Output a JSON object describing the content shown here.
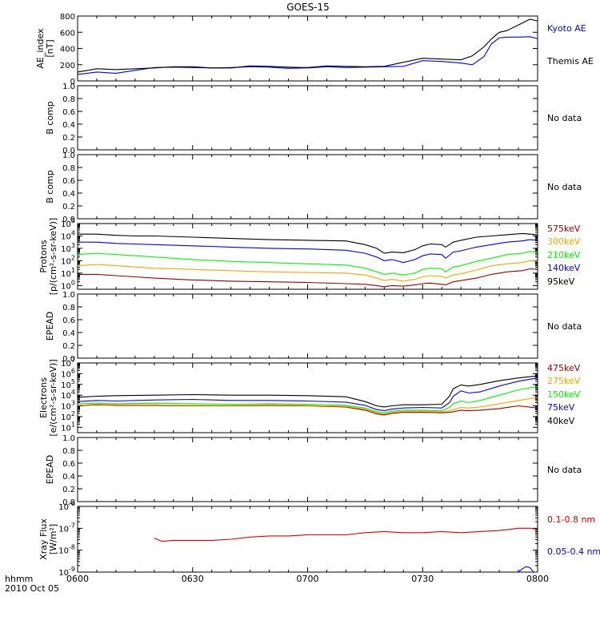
{
  "title": "GOES-15",
  "time_axis": {
    "start": "0600",
    "end": "0800",
    "tick_labels": [
      "0600",
      "0630",
      "0700",
      "0730",
      "0800"
    ],
    "label_line1": "hhmm",
    "label_line2": "2010 Oct 05"
  },
  "colors": {
    "black": "#000000",
    "blue": "#0000ff",
    "red": "#c00000",
    "orange": "#ffa500",
    "green": "#00ff00",
    "darkred": "#990000"
  },
  "chart_data": [
    {
      "type": "line",
      "panel": "ae",
      "ylabel": "AE_index\n[nT]",
      "ylim": [
        0,
        800
      ],
      "yticks": [
        "0",
        "200",
        "400",
        "600",
        "800"
      ],
      "x_minutes_from_0600": [
        0,
        5,
        10,
        15,
        20,
        25,
        30,
        35,
        40,
        45,
        50,
        55,
        60,
        65,
        70,
        75,
        80,
        85,
        90,
        95,
        100,
        103,
        106,
        108,
        110,
        112,
        115,
        118,
        120
      ],
      "series": [
        {
          "name": "Kyoto AE",
          "color": "#0000ff",
          "values": [
            80,
            110,
            95,
            130,
            165,
            170,
            165,
            160,
            165,
            175,
            170,
            155,
            160,
            175,
            165,
            170,
            175,
            180,
            250,
            240,
            220,
            200,
            300,
            460,
            530,
            540,
            540,
            545,
            520
          ]
        },
        {
          "name": "Themis AE",
          "color": "#000000",
          "values": [
            110,
            150,
            140,
            150,
            160,
            175,
            175,
            160,
            160,
            185,
            180,
            170,
            165,
            185,
            180,
            175,
            180,
            230,
            280,
            270,
            260,
            310,
            420,
            520,
            600,
            620,
            690,
            760,
            740
          ]
        }
      ]
    },
    {
      "type": "empty",
      "panel": "b1",
      "ylabel": "B comp",
      "ylim": [
        0,
        1
      ],
      "yticks": [
        "0.0",
        "0.2",
        "0.4",
        "0.6",
        "0.8",
        "1.0"
      ],
      "note": "No data"
    },
    {
      "type": "empty",
      "panel": "b2",
      "ylabel": "B comp",
      "ylim": [
        0,
        1
      ],
      "yticks": [
        "0.0",
        "0.2",
        "0.4",
        "0.6",
        "0.8",
        "1.0"
      ],
      "note": "No data"
    },
    {
      "type": "line",
      "panel": "protons",
      "scale": "log",
      "ylabel": "Protons\n[p/(cm²-s-sr-keV)]",
      "ylim_exp": [
        -0.3,
        5
      ],
      "ytick_exps": [
        0,
        1,
        2,
        3,
        4,
        5
      ],
      "x_minutes_from_0600": [
        0,
        5,
        10,
        15,
        20,
        30,
        40,
        50,
        60,
        70,
        75,
        78,
        80,
        82,
        85,
        88,
        90,
        92,
        95,
        96,
        98,
        100,
        104,
        108,
        112,
        116,
        118,
        120
      ],
      "series": [
        {
          "name": "575keV",
          "color": "#990000",
          "values": [
            0.9,
            0.9,
            0.8,
            0.7,
            0.6,
            0.45,
            0.35,
            0.3,
            0.25,
            0.15,
            0.1,
            0.0,
            -0.1,
            0.0,
            -0.05,
            0.05,
            0.15,
            0.2,
            0.1,
            0.05,
            0.3,
            0.4,
            0.6,
            0.9,
            1.1,
            1.2,
            1.35,
            1.3
          ]
        },
        {
          "name": "300keV",
          "color": "#ffa500",
          "values": [
            1.6,
            1.7,
            1.6,
            1.5,
            1.4,
            1.3,
            1.2,
            1.1,
            1.05,
            1.0,
            0.85,
            0.6,
            0.4,
            0.5,
            0.35,
            0.5,
            0.7,
            0.8,
            0.75,
            0.6,
            0.85,
            0.95,
            1.25,
            1.6,
            1.75,
            1.85,
            2.0,
            1.95
          ]
        },
        {
          "name": "210keV",
          "color": "#00ff00",
          "values": [
            2.5,
            2.6,
            2.5,
            2.4,
            2.3,
            2.1,
            1.95,
            1.85,
            1.75,
            1.65,
            1.4,
            1.1,
            0.9,
            1.0,
            0.85,
            1.0,
            1.3,
            1.4,
            1.35,
            1.1,
            1.5,
            1.6,
            1.95,
            2.2,
            2.5,
            2.6,
            2.75,
            2.7
          ]
        },
        {
          "name": "140keV",
          "color": "#0000ff",
          "values": [
            3.5,
            3.5,
            3.4,
            3.35,
            3.3,
            3.2,
            3.1,
            3.0,
            2.95,
            2.85,
            2.6,
            2.3,
            2.0,
            2.1,
            1.85,
            2.1,
            2.4,
            2.55,
            2.5,
            2.2,
            2.7,
            2.8,
            3.1,
            3.3,
            3.5,
            3.6,
            3.7,
            3.65
          ]
        },
        {
          "name": "95keV",
          "color": "#000000",
          "values": [
            4.15,
            4.15,
            4.05,
            4.0,
            4.0,
            3.9,
            3.8,
            3.7,
            3.65,
            3.6,
            3.3,
            3.0,
            2.6,
            2.7,
            2.65,
            2.9,
            3.2,
            3.35,
            3.3,
            3.1,
            3.5,
            3.65,
            3.9,
            4.0,
            4.1,
            4.2,
            4.15,
            4.1
          ]
        }
      ]
    },
    {
      "type": "empty",
      "panel": "epead1",
      "ylabel": "EPEAD",
      "ylim": [
        0,
        1
      ],
      "yticks": [
        "0.0",
        "0.2",
        "0.4",
        "0.6",
        "0.8",
        "1.0"
      ],
      "note": "No data"
    },
    {
      "type": "line",
      "panel": "electrons",
      "scale": "log",
      "ylabel": "Electrons\n[e/(cm²-s-sr-keV)]",
      "ylim_exp": [
        0.5,
        7
      ],
      "ytick_exps": [
        1,
        2,
        3,
        4,
        5,
        6,
        7
      ],
      "x_minutes_from_0600": [
        0,
        5,
        10,
        20,
        30,
        40,
        50,
        60,
        70,
        75,
        78,
        80,
        82,
        85,
        90,
        95,
        97,
        98,
        100,
        102,
        105,
        110,
        115,
        120
      ],
      "series": [
        {
          "name": "475keV",
          "color": "#990000",
          "values": [
            3.0,
            3.1,
            3.05,
            3.05,
            3.0,
            3.0,
            3.05,
            3.0,
            2.9,
            2.6,
            2.25,
            2.15,
            2.3,
            2.4,
            2.4,
            2.35,
            2.4,
            2.45,
            2.6,
            2.55,
            2.6,
            2.75,
            3.0,
            2.8
          ]
        },
        {
          "name": "275keV",
          "color": "#ffa500",
          "values": [
            3.05,
            3.15,
            3.1,
            3.1,
            3.05,
            3.05,
            3.1,
            3.05,
            2.95,
            2.7,
            2.35,
            2.25,
            2.4,
            2.5,
            2.5,
            2.45,
            2.55,
            2.65,
            2.85,
            2.8,
            2.9,
            3.2,
            3.5,
            3.8
          ]
        },
        {
          "name": "150keV",
          "color": "#00ff00",
          "values": [
            3.2,
            3.25,
            3.2,
            3.25,
            3.2,
            3.15,
            3.2,
            3.15,
            3.05,
            2.8,
            2.45,
            2.35,
            2.5,
            2.6,
            2.6,
            2.55,
            2.85,
            3.2,
            3.45,
            3.3,
            3.5,
            4.0,
            4.5,
            4.8
          ]
        },
        {
          "name": "75keV",
          "color": "#0000ff",
          "values": [
            3.4,
            3.5,
            3.45,
            3.55,
            3.6,
            3.5,
            3.5,
            3.45,
            3.35,
            3.05,
            2.65,
            2.55,
            2.7,
            2.8,
            2.85,
            2.8,
            3.3,
            3.9,
            4.4,
            4.2,
            4.3,
            4.85,
            5.3,
            5.6
          ]
        },
        {
          "name": "40keV",
          "color": "#000000",
          "values": [
            3.8,
            3.9,
            3.95,
            4.0,
            4.05,
            4.0,
            4.0,
            3.95,
            3.85,
            3.4,
            3.0,
            2.9,
            3.0,
            3.1,
            3.1,
            3.15,
            3.9,
            4.6,
            4.95,
            4.85,
            5.0,
            5.35,
            5.6,
            5.8
          ]
        }
      ]
    },
    {
      "type": "empty",
      "panel": "epead2",
      "ylabel": "EPEAD",
      "ylim": [
        0,
        1
      ],
      "yticks": [
        "0.0",
        "0.2",
        "0.4",
        "0.6",
        "0.8",
        "1.0"
      ],
      "note": "No data"
    },
    {
      "type": "line",
      "panel": "xray",
      "scale": "log",
      "ylabel": "Xray Flux\n[W/m²]",
      "ylim_exp": [
        -9,
        -6
      ],
      "ytick_exps": [
        -9,
        -8,
        -7,
        -6
      ],
      "series": [
        {
          "name": "0.1-0.8 nm",
          "color": "#dd0000",
          "x_minutes_from_0600": [
            20,
            22,
            25,
            30,
            35,
            40,
            45,
            50,
            55,
            60,
            65,
            70,
            75,
            80,
            85,
            90,
            95,
            100,
            105,
            110,
            115,
            118,
            120
          ],
          "values": [
            -7.45,
            -7.6,
            -7.55,
            -7.55,
            -7.55,
            -7.5,
            -7.4,
            -7.35,
            -7.35,
            -7.3,
            -7.3,
            -7.3,
            -7.2,
            -7.15,
            -7.2,
            -7.2,
            -7.15,
            -7.2,
            -7.15,
            -7.1,
            -7.0,
            -7.0,
            -7.05
          ]
        },
        {
          "name": "0.05-0.4 nm",
          "color": "#0000ff",
          "x_minutes_from_0600": [
            115,
            116,
            117,
            118,
            119,
            120
          ],
          "values": [
            -9.0,
            -8.85,
            -8.75,
            -8.8,
            -9.0,
            -9.0
          ]
        }
      ]
    }
  ]
}
